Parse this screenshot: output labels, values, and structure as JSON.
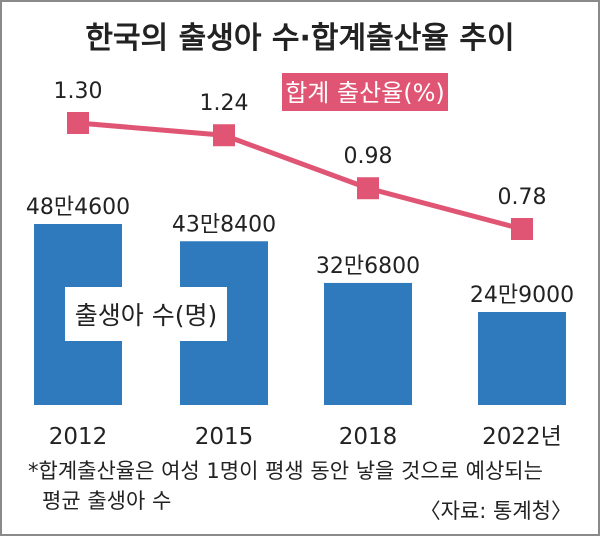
{
  "chart_data": {
    "type": "bar",
    "title": "한국의 출생아 수·합계출산율 추이",
    "categories": [
      "2012",
      "2015",
      "2018",
      "2022년"
    ],
    "series": [
      {
        "name": "출생아 수(명)",
        "type": "bar",
        "values": [
          484600,
          438400,
          326800,
          249000
        ],
        "labels": [
          "48만4600",
          "43만8400",
          "32만6800",
          "24만9000"
        ]
      },
      {
        "name": "합계 출산율(%)",
        "type": "line",
        "values": [
          1.3,
          1.24,
          0.98,
          0.78
        ],
        "labels": [
          "1.30",
          "1.24",
          "0.98",
          "0.78"
        ]
      }
    ],
    "footnote": "*합계출산율은 여성 1명이 평생 동안 낳을 것으로 예상되는 평균 출생아 수",
    "source": "〈자료: 통계청〉",
    "colors": {
      "bar": "#2f79bd",
      "line": "#e05573",
      "frame": "#8a8a8a",
      "text": "#222222"
    }
  }
}
